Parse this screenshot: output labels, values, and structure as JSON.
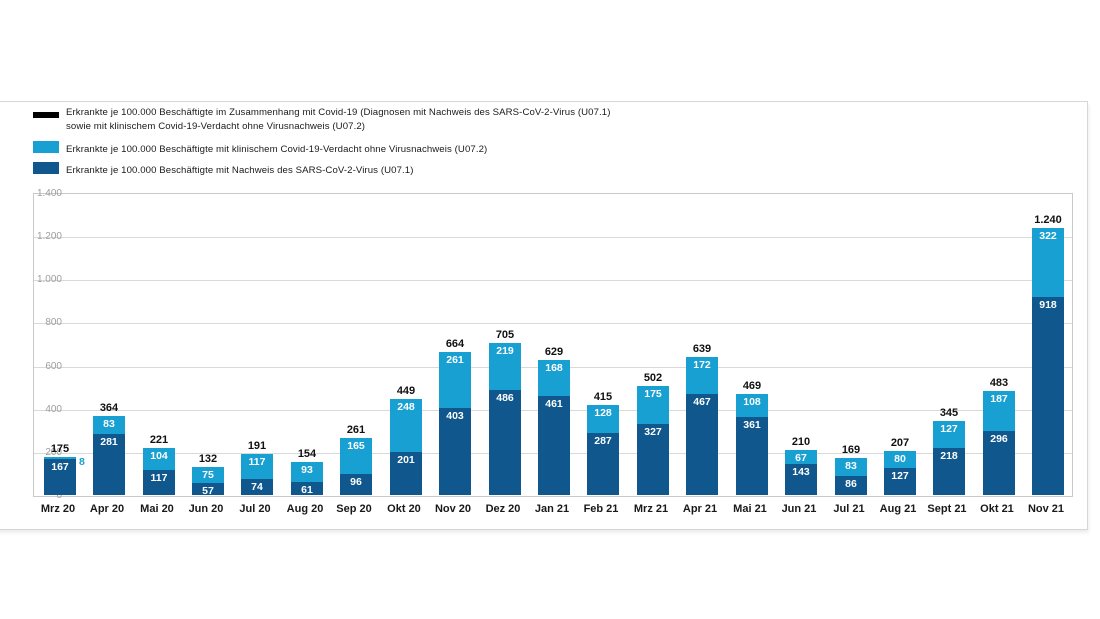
{
  "legend": {
    "items": [
      {
        "swatch": "black-line",
        "color": "#000000",
        "line1": "Erkrankte je 100.000 Beschäftigte im Zusammenhang mit Covid-19 (Diagnosen mit Nachweis des SARS-CoV-2-Virus (U07.1)",
        "line2": "sowie mit klinischem Covid-19-Verdacht ohne Virusnachweis (U07.2)"
      },
      {
        "swatch": "light-blue-square",
        "color": "#18a0d2",
        "line1": "Erkrankte je 100.000 Beschäftigte mit klinischem Covid-19-Verdacht ohne Virusnachweis (U07.2)"
      },
      {
        "swatch": "dark-blue-square",
        "color": "#0f578c",
        "line1": "Erkrankte je 100.000 Beschäftigte mit Nachweis des SARS-CoV-2-Virus (U07.1)"
      }
    ]
  },
  "chart_data": {
    "type": "bar",
    "stacked": true,
    "title": "",
    "xlabel": "",
    "ylabel": "",
    "grid": true,
    "legend_position": "top-left",
    "ylim": [
      0,
      1400
    ],
    "ytick_values": [
      0,
      200,
      400,
      600,
      800,
      1000,
      1200,
      1400
    ],
    "ytick_labels": [
      "0",
      "200",
      "400",
      "600",
      "800",
      "1.000",
      "1.200",
      "1.400"
    ],
    "categories": [
      "Mrz 20",
      "Apr 20",
      "Mai 20",
      "Jun 20",
      "Jul 20",
      "Aug 20",
      "Sep 20",
      "Okt 20",
      "Nov 20",
      "Dez 20",
      "Jan 21",
      "Feb 21",
      "Mrz 21",
      "Apr 21",
      "Mai 21",
      "Jun 21",
      "Jul 21",
      "Aug 21",
      "Sept 21",
      "Okt 21",
      "Nov 21"
    ],
    "series": [
      {
        "name": "Erkrankte je 100.000 Beschäftigte mit Nachweis des SARS-CoV-2-Virus (U07.1)",
        "color": "#0f578c",
        "values": [
          167,
          281,
          117,
          57,
          74,
          61,
          96,
          201,
          403,
          486,
          461,
          287,
          327,
          467,
          361,
          143,
          86,
          127,
          218,
          296,
          918
        ]
      },
      {
        "name": "Erkrankte je 100.000 Beschäftigte mit klinischem Covid-19-Verdacht ohne Virusnachweis (U07.2)",
        "color": "#18a0d2",
        "values": [
          8,
          83,
          104,
          75,
          117,
          93,
          165,
          248,
          261,
          219,
          168,
          128,
          175,
          172,
          108,
          67,
          83,
          80,
          127,
          187,
          322
        ]
      }
    ],
    "totals": [
      175,
      364,
      221,
      132,
      191,
      154,
      261,
      449,
      664,
      705,
      629,
      415,
      502,
      639,
      469,
      210,
      169,
      207,
      345,
      483,
      1240
    ],
    "total_labels": [
      "175",
      "364",
      "221",
      "132",
      "191",
      "154",
      "261",
      "449",
      "664",
      "705",
      "629",
      "415",
      "502",
      "639",
      "469",
      "210",
      "169",
      "207",
      "345",
      "483",
      "1.240"
    ]
  }
}
